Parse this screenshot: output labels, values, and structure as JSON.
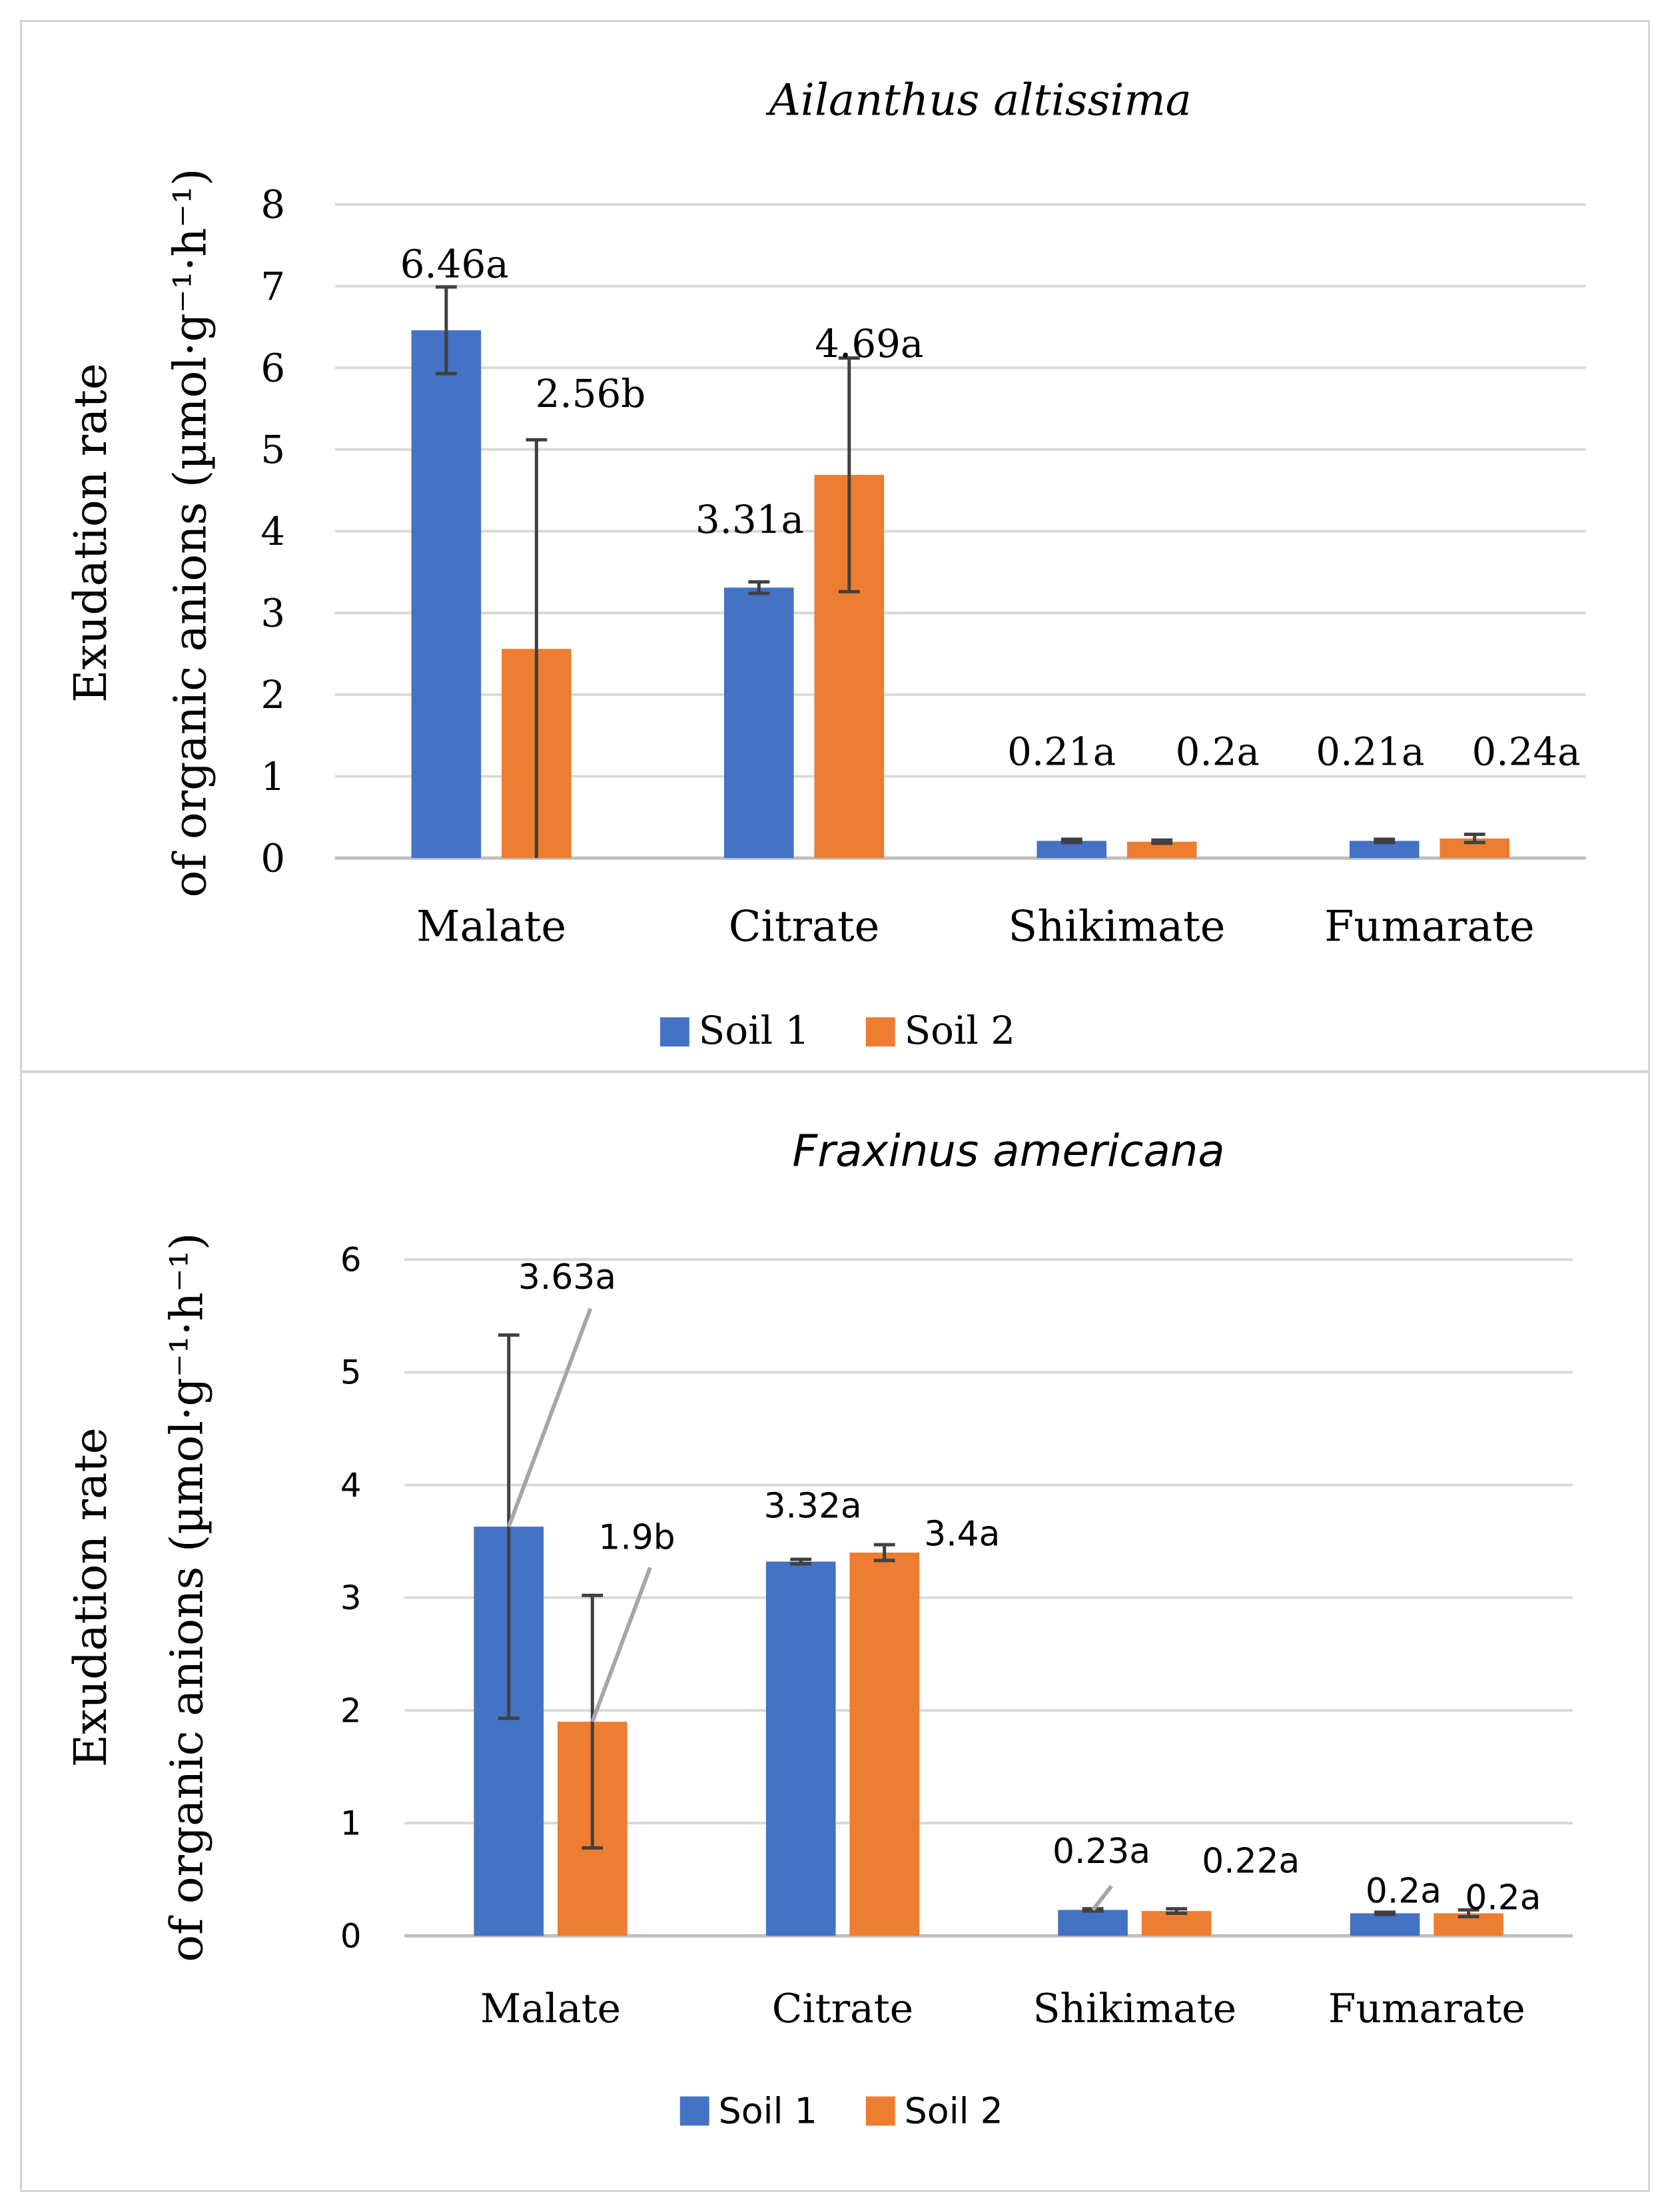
{
  "chart_data": [
    {
      "type": "bar",
      "title": "Ailanthus altissima",
      "ylabel_line1": "Exudation rate",
      "ylabel_line2": "of organic anions (µmol·g⁻¹·h⁻¹)",
      "xlabel": "",
      "categories": [
        "Malate",
        "Citrate",
        "Shikimate",
        "Fumarate"
      ],
      "ylim": [
        0,
        8
      ],
      "yticks": [
        "0",
        "1",
        "2",
        "3",
        "4",
        "5",
        "6",
        "7",
        "8"
      ],
      "grid": true,
      "legend_position": "bottom",
      "series": [
        {
          "name": "Soil 1",
          "color": "#4472c4",
          "values": [
            6.46,
            3.31,
            0.21,
            0.21
          ],
          "errors": [
            0.53,
            0.07,
            0.02,
            0.02
          ],
          "labels": [
            "6.46a",
            "3.31a",
            "0.21a",
            "0.21a"
          ]
        },
        {
          "name": "Soil 2",
          "color": "#ed7d31",
          "values": [
            2.56,
            4.69,
            0.2,
            0.24
          ],
          "errors": [
            2.56,
            1.43,
            0.02,
            0.05
          ],
          "labels": [
            "2.56b",
            "4.69a",
            "0.2a",
            "0.24a"
          ]
        }
      ]
    },
    {
      "type": "bar",
      "title": "Fraxinus americana",
      "ylabel_line1": "Exudation rate",
      "ylabel_line2": "of organic anions (µmol·g⁻¹·h⁻¹)",
      "xlabel": "",
      "categories": [
        "Malate",
        "Citrate",
        "Shikimate",
        "Fumarate"
      ],
      "ylim": [
        0,
        6
      ],
      "yticks": [
        "0",
        "1",
        "2",
        "3",
        "4",
        "5",
        "6"
      ],
      "grid": true,
      "legend_position": "bottom",
      "series": [
        {
          "name": "Soil 1",
          "color": "#4472c4",
          "values": [
            3.63,
            3.32,
            0.23,
            0.2
          ],
          "errors": [
            1.7,
            0.02,
            0.01,
            0.01
          ],
          "labels": [
            "3.63a",
            "3.32a",
            "0.23a",
            "0.2a"
          ]
        },
        {
          "name": "Soil 2",
          "color": "#ed7d31",
          "values": [
            1.9,
            3.4,
            0.22,
            0.2
          ],
          "errors": [
            1.12,
            0.07,
            0.02,
            0.03
          ],
          "labels": [
            "1.9b",
            "3.4a",
            "0.22a",
            "0.2a"
          ]
        }
      ]
    }
  ]
}
